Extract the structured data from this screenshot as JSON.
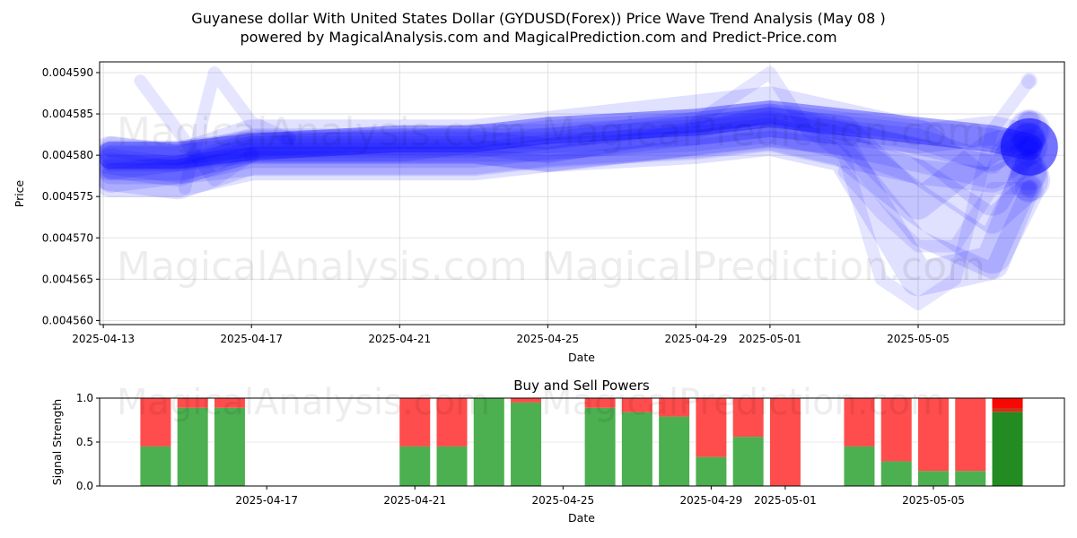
{
  "title_line1": "Guyanese dollar With United States Dollar (GYDUSD(Forex)) Price Wave Trend Analysis (May 08 )",
  "title_line2": "powered by MagicalAnalysis.com and MagicalPrediction.com and Predict-Price.com",
  "watermarks": [
    "MagicalAnalysis.com",
    "MagicalPrediction.com"
  ],
  "chart_data": [
    {
      "type": "line",
      "name": "price-wave-chart",
      "xlabel": "Date",
      "ylabel": "Price",
      "x_start": "2025-04-13",
      "xlim_days": [
        -0.1,
        25.95
      ],
      "ylim": [
        0.0045595,
        0.0045913
      ],
      "yticks": [
        0.00456,
        0.004565,
        0.00457,
        0.004575,
        0.00458,
        0.004585,
        0.00459
      ],
      "ytick_labels": [
        "0.004560",
        "0.004565",
        "0.004570",
        "0.004575",
        "0.004580",
        "0.004585",
        "0.004590"
      ],
      "xtick_labels": [
        "2025-04-13",
        "2025-04-17",
        "2025-04-21",
        "2025-04-25",
        "2025-04-29",
        "2025-05-01",
        "2025-05-05"
      ],
      "color": "#0000ff",
      "grid": true,
      "series": [
        {
          "name": "wave-1",
          "x": [
            0.2,
            2,
            4,
            8,
            10,
            12,
            16,
            18,
            20,
            22,
            24,
            25
          ],
          "y": [
            0.004579,
            0.004579,
            0.004581,
            0.004581,
            0.004581,
            0.00458,
            0.004583,
            0.004585,
            0.004583,
            0.004581,
            0.004579,
            0.004581
          ]
        },
        {
          "name": "wave-2",
          "x": [
            0.2,
            2,
            4,
            8,
            10,
            12,
            16,
            18,
            20,
            22,
            24,
            25
          ],
          "y": [
            0.00458,
            0.00458,
            0.004581,
            0.004582,
            0.004582,
            0.004583,
            0.004584,
            0.004585,
            0.004584,
            0.004583,
            0.004582,
            0.004581
          ]
        },
        {
          "name": "wave-3",
          "x": [
            0.2,
            2,
            4,
            8,
            10,
            12,
            16,
            18,
            20,
            22,
            24,
            25
          ],
          "y": [
            0.004578,
            0.004578,
            0.00458,
            0.00458,
            0.00458,
            0.004581,
            0.004582,
            0.004583,
            0.004581,
            0.004578,
            0.004577,
            0.004579
          ]
        },
        {
          "name": "wave-4",
          "x": [
            0.2,
            2,
            4,
            8,
            10,
            12,
            16,
            18,
            20,
            22,
            24,
            25
          ],
          "y": [
            0.004579,
            0.004578,
            0.004581,
            0.004581,
            0.004582,
            0.004582,
            0.004583,
            0.004584,
            0.004583,
            0.004574,
            0.004581,
            0.004582
          ]
        },
        {
          "name": "wave-5",
          "x": [
            0.2,
            2,
            4,
            8,
            10,
            12,
            16,
            18,
            20,
            22,
            24,
            25
          ],
          "y": [
            0.004577,
            0.004577,
            0.004579,
            0.004579,
            0.004579,
            0.00458,
            0.004581,
            0.004582,
            0.00458,
            0.004565,
            0.004567,
            0.004578
          ]
        },
        {
          "name": "wave-6",
          "x": [
            0.2,
            2,
            4,
            8,
            10,
            12,
            16,
            18,
            20,
            22,
            24,
            25
          ],
          "y": [
            0.00458,
            0.004579,
            0.004582,
            0.004582,
            0.004582,
            0.004583,
            0.004585,
            0.004586,
            0.004584,
            0.004582,
            0.004575,
            0.004583
          ]
        },
        {
          "name": "wave-7",
          "x": [
            0.2,
            2,
            4,
            8,
            10,
            12,
            16,
            18,
            20,
            22,
            24,
            25
          ],
          "y": [
            0.004578,
            0.004579,
            0.00458,
            0.00458,
            0.00458,
            0.004579,
            0.004581,
            0.004582,
            0.004581,
            0.00457,
            0.004566,
            0.004576
          ]
        },
        {
          "name": "wave-8",
          "x": [
            0.2,
            2,
            4,
            8,
            10,
            12,
            16,
            18,
            20,
            22,
            24,
            25
          ],
          "y": [
            0.004581,
            0.00458,
            0.004582,
            0.004582,
            0.004582,
            0.004582,
            0.004584,
            0.004585,
            0.004583,
            0.004582,
            0.004579,
            0.004584
          ]
        },
        {
          "name": "wave-9",
          "x": [
            0.2,
            2,
            4,
            8,
            10,
            12,
            16,
            18,
            20,
            22,
            24,
            25
          ],
          "y": [
            0.004577,
            0.004578,
            0.004579,
            0.004579,
            0.004579,
            0.00458,
            0.004581,
            0.004582,
            0.00458,
            0.004578,
            0.004572,
            0.004576
          ]
        },
        {
          "name": "wave-10",
          "x": [
            0.2,
            2,
            4,
            8,
            10,
            12,
            16,
            18,
            20,
            22,
            24,
            25
          ],
          "y": [
            0.00458,
            0.00458,
            0.004581,
            0.004581,
            0.004581,
            0.004581,
            0.004583,
            0.004584,
            0.004583,
            0.004582,
            0.004583,
            0.004582
          ]
        },
        {
          "name": "wave-11",
          "x": [
            0.2,
            2,
            4,
            8,
            10,
            12,
            16,
            18,
            20,
            22,
            24,
            25
          ],
          "y": [
            0.004579,
            0.004579,
            0.004581,
            0.004581,
            0.004581,
            0.00458,
            0.004582,
            0.004583,
            0.004582,
            0.00458,
            0.004578,
            0.004581
          ]
        },
        {
          "name": "wave-12",
          "x": [
            0.2,
            2,
            4,
            8,
            10,
            12,
            16,
            18,
            20,
            22,
            24,
            25
          ],
          "y": [
            0.004578,
            0.004577,
            0.00458,
            0.00458,
            0.00458,
            0.004581,
            0.004582,
            0.004583,
            0.004581,
            0.004574,
            0.004568,
            0.004577
          ]
        },
        {
          "name": "spike-a",
          "x": [
            1,
            2,
            3,
            4
          ],
          "y": [
            0.004589,
            0.004583,
            0.004577,
            0.00458
          ]
        },
        {
          "name": "spike-b",
          "x": [
            2.2,
            3,
            4,
            5
          ],
          "y": [
            0.004576,
            0.00459,
            0.004584,
            0.004582
          ]
        },
        {
          "name": "spike-c",
          "x": [
            16,
            18,
            19,
            20,
            21,
            22,
            23,
            24,
            25
          ],
          "y": [
            0.004584,
            0.00459,
            0.004583,
            0.00458,
            0.004565,
            0.004562,
            0.004565,
            0.004583,
            0.004589
          ]
        },
        {
          "name": "spike-d",
          "x": [
            20,
            21,
            22,
            23,
            24,
            25
          ],
          "y": [
            0.004578,
            0.004573,
            0.004569,
            0.004569,
            0.004576,
            0.004576
          ]
        }
      ]
    },
    {
      "type": "bar",
      "name": "buy-sell-chart",
      "title": "Buy and Sell Powers",
      "xlabel": "Date",
      "ylabel": "Signal Strength",
      "ylim": [
        0.0,
        1.0
      ],
      "yticks": [
        0.0,
        0.5,
        1.0
      ],
      "ytick_labels": [
        "0.0",
        "0.5",
        "1.0"
      ],
      "xtick_labels": [
        "2025-04-17",
        "2025-04-21",
        "2025-04-25",
        "2025-04-29",
        "2025-05-01",
        "2025-05-05"
      ],
      "x_days": [
        1,
        2,
        3,
        8,
        9,
        10,
        11,
        13,
        14,
        15,
        16,
        17,
        18,
        20,
        21,
        22,
        23,
        24
      ],
      "buy": [
        0.45,
        0.89,
        0.89,
        0.45,
        0.45,
        1.0,
        0.95,
        0.89,
        0.84,
        0.79,
        0.33,
        0.56,
        0.0,
        0.45,
        0.28,
        0.17,
        0.17,
        0.84
      ],
      "sell": [
        0.55,
        0.11,
        0.11,
        0.55,
        0.55,
        0.0,
        0.05,
        0.11,
        0.16,
        0.21,
        0.67,
        0.44,
        1.0,
        0.55,
        0.72,
        0.83,
        0.83,
        0.16
      ],
      "highlight_index": 17,
      "colors": {
        "buy": "#4caf50",
        "sell": "#ff4c4c",
        "buy_dark": "#228b22",
        "sell_dark": "#cc3319"
      }
    }
  ]
}
